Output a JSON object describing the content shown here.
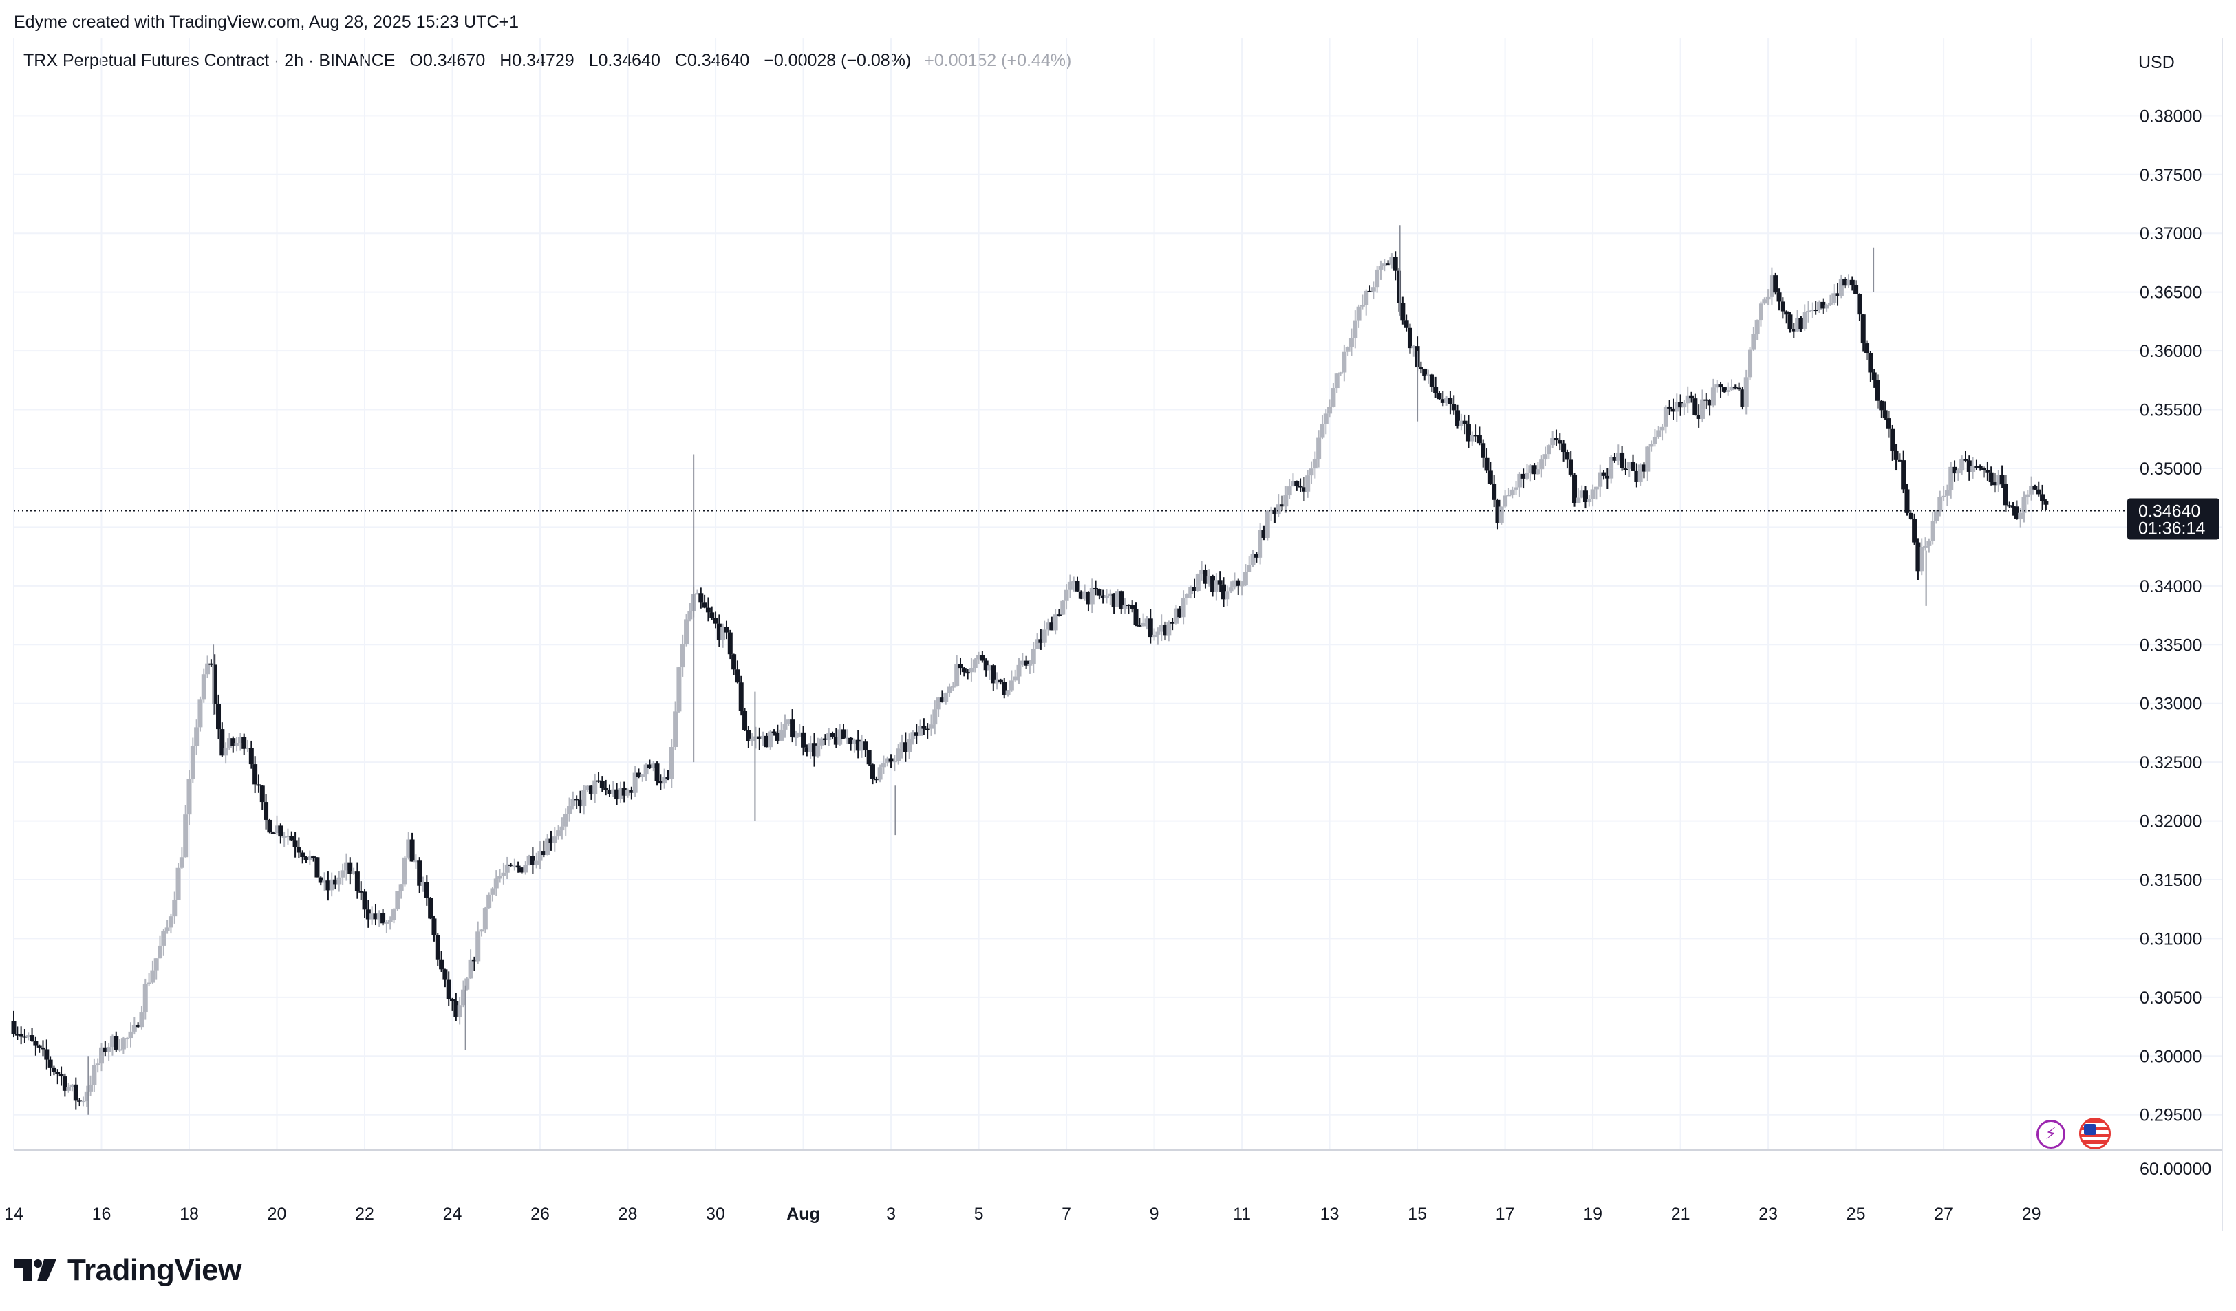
{
  "header": {
    "creator": "Edyme created with TradingView.com, Aug 28, 2025 15:23 UTC+1",
    "symbol": "TRX Perpetual Futures Contract · 2h · BINANCE",
    "open_label": "O",
    "open": "0.34670",
    "high_label": "H",
    "high": "0.34729",
    "low_label": "L",
    "low": "0.34640",
    "close_label": "C",
    "close": "0.34640",
    "change": "−0.00028 (−0.08%)",
    "after_hours_change": "+0.00152 (+0.44%)",
    "currency": "USD"
  },
  "price_label": {
    "price": "0.34640",
    "countdown": "01:36:14"
  },
  "volume_label": "60.00000",
  "logo_text": "TradingView",
  "icons": [
    "lightning-icon",
    "us-flag-icon",
    "tradingview-logo-icon"
  ],
  "colors": {
    "up": "#b2b5be",
    "down": "#131722",
    "grid": "#f0f3fa",
    "label_bg": "#131722"
  },
  "chart_data": {
    "type": "candlestick",
    "title": "TRX Perpetual Futures Contract · 2h · BINANCE",
    "ylim": [
      0.292,
      0.384
    ],
    "y_ticks": [
      "0.38000",
      "0.37500",
      "0.37000",
      "0.36500",
      "0.36000",
      "0.35500",
      "0.35000",
      "0.34500",
      "0.34000",
      "0.33500",
      "0.33000",
      "0.32500",
      "0.32000",
      "0.31500",
      "0.31000",
      "0.30500",
      "0.30000",
      "0.29500"
    ],
    "x_tick_labels": [
      "14",
      "16",
      "18",
      "20",
      "22",
      "24",
      "26",
      "28",
      "30",
      "Aug",
      "3",
      "5",
      "7",
      "9",
      "11",
      "13",
      "15",
      "17",
      "19",
      "21",
      "23",
      "25",
      "27",
      "29"
    ],
    "x_tick_days": [
      14,
      16,
      18,
      20,
      22,
      24,
      26,
      28,
      30,
      32,
      34,
      36,
      38,
      40,
      42,
      44,
      46,
      48,
      50,
      52,
      54,
      56,
      58,
      60
    ],
    "xlim_days": [
      14.0,
      60.9
    ],
    "last_price": 0.3464,
    "price_path": [
      [
        14.0,
        0.303
      ],
      [
        14.6,
        0.3005
      ],
      [
        15.1,
        0.2985
      ],
      [
        15.6,
        0.296
      ],
      [
        16.2,
        0.301
      ],
      [
        16.8,
        0.3015
      ],
      [
        17.1,
        0.306
      ],
      [
        17.6,
        0.311
      ],
      [
        17.9,
        0.317
      ],
      [
        18.3,
        0.33
      ],
      [
        18.55,
        0.334
      ],
      [
        18.8,
        0.326
      ],
      [
        19.4,
        0.327
      ],
      [
        19.8,
        0.32
      ],
      [
        20.3,
        0.319
      ],
      [
        20.8,
        0.317
      ],
      [
        21.2,
        0.314
      ],
      [
        21.7,
        0.316
      ],
      [
        22.2,
        0.312
      ],
      [
        22.7,
        0.311
      ],
      [
        23.1,
        0.318
      ],
      [
        23.5,
        0.313
      ],
      [
        23.9,
        0.306
      ],
      [
        24.2,
        0.303
      ],
      [
        24.6,
        0.309
      ],
      [
        25.0,
        0.315
      ],
      [
        25.6,
        0.316
      ],
      [
        26.2,
        0.318
      ],
      [
        26.8,
        0.321
      ],
      [
        27.3,
        0.323
      ],
      [
        28.0,
        0.322
      ],
      [
        28.5,
        0.325
      ],
      [
        29.0,
        0.323
      ],
      [
        29.35,
        0.336
      ],
      [
        29.6,
        0.339
      ],
      [
        30.0,
        0.337
      ],
      [
        30.4,
        0.335
      ],
      [
        30.8,
        0.327
      ],
      [
        31.3,
        0.327
      ],
      [
        31.8,
        0.328
      ],
      [
        32.3,
        0.326
      ],
      [
        32.8,
        0.327
      ],
      [
        33.3,
        0.327
      ],
      [
        33.7,
        0.324
      ],
      [
        34.1,
        0.325
      ],
      [
        34.6,
        0.327
      ],
      [
        35.2,
        0.33
      ],
      [
        35.6,
        0.333
      ],
      [
        36.2,
        0.334
      ],
      [
        36.6,
        0.331
      ],
      [
        37.1,
        0.333
      ],
      [
        37.6,
        0.336
      ],
      [
        38.2,
        0.34
      ],
      [
        38.7,
        0.339
      ],
      [
        39.2,
        0.339
      ],
      [
        39.7,
        0.337
      ],
      [
        40.2,
        0.336
      ],
      [
        40.7,
        0.338
      ],
      [
        41.2,
        0.341
      ],
      [
        41.7,
        0.339
      ],
      [
        42.2,
        0.341
      ],
      [
        42.7,
        0.346
      ],
      [
        43.1,
        0.348
      ],
      [
        43.6,
        0.349
      ],
      [
        44.1,
        0.356
      ],
      [
        44.6,
        0.362
      ],
      [
        45.1,
        0.366
      ],
      [
        45.5,
        0.368
      ],
      [
        45.8,
        0.362
      ],
      [
        46.2,
        0.358
      ],
      [
        46.6,
        0.356
      ],
      [
        47.0,
        0.354
      ],
      [
        47.5,
        0.352
      ],
      [
        47.9,
        0.346
      ],
      [
        48.4,
        0.349
      ],
      [
        48.9,
        0.35
      ],
      [
        49.3,
        0.353
      ],
      [
        49.7,
        0.347
      ],
      [
        50.2,
        0.349
      ],
      [
        50.7,
        0.351
      ],
      [
        51.1,
        0.349
      ],
      [
        51.5,
        0.353
      ],
      [
        52.0,
        0.356
      ],
      [
        52.5,
        0.355
      ],
      [
        53.1,
        0.357
      ],
      [
        53.5,
        0.356
      ],
      [
        53.8,
        0.363
      ],
      [
        54.2,
        0.366
      ],
      [
        54.6,
        0.362
      ],
      [
        55.1,
        0.363
      ],
      [
        55.6,
        0.365
      ],
      [
        56.0,
        0.366
      ],
      [
        56.3,
        0.36
      ],
      [
        56.7,
        0.354
      ],
      [
        57.1,
        0.35
      ],
      [
        57.5,
        0.342
      ],
      [
        57.9,
        0.346
      ],
      [
        58.3,
        0.35
      ],
      [
        58.8,
        0.35
      ],
      [
        59.3,
        0.349
      ],
      [
        59.7,
        0.346
      ],
      [
        60.1,
        0.348
      ],
      [
        60.35,
        0.3464
      ]
    ],
    "spikes": [
      {
        "day": 29.5,
        "high": 0.3512,
        "low": 0.325
      },
      {
        "day": 30.9,
        "high": 0.331,
        "low": 0.32
      },
      {
        "day": 24.3,
        "high": 0.306,
        "low": 0.3005
      },
      {
        "day": 15.7,
        "high": 0.3,
        "low": 0.295
      },
      {
        "day": 45.6,
        "high": 0.3707,
        "low": 0.363
      },
      {
        "day": 46.0,
        "high": 0.36,
        "low": 0.354
      },
      {
        "day": 56.4,
        "high": 0.3688,
        "low": 0.365
      },
      {
        "day": 57.6,
        "high": 0.343,
        "low": 0.3383
      },
      {
        "day": 34.1,
        "high": 0.323,
        "low": 0.3188
      },
      {
        "day": 18.55,
        "high": 0.335,
        "low": 0.329
      }
    ]
  }
}
